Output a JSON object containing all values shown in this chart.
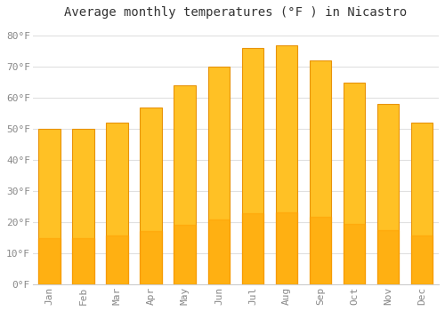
{
  "title": "Average monthly temperatures (°F ) in Nicastro",
  "months": [
    "Jan",
    "Feb",
    "Mar",
    "Apr",
    "May",
    "Jun",
    "Jul",
    "Aug",
    "Sep",
    "Oct",
    "Nov",
    "Dec"
  ],
  "values": [
    50,
    50,
    52,
    57,
    64,
    70,
    76,
    77,
    72,
    65,
    58,
    52
  ],
  "bar_color_top": "#FFC125",
  "bar_color_bottom": "#FFA000",
  "bar_edge_color": "#E8930A",
  "ylim": [
    0,
    84
  ],
  "yticks": [
    0,
    10,
    20,
    30,
    40,
    50,
    60,
    70,
    80
  ],
  "ytick_labels": [
    "0°F",
    "10°F",
    "20°F",
    "30°F",
    "40°F",
    "50°F",
    "60°F",
    "70°F",
    "80°F"
  ],
  "background_color": "#ffffff",
  "grid_color": "#e0e0e0",
  "title_fontsize": 10,
  "tick_fontsize": 8,
  "font_family": "monospace",
  "tick_color": "#888888",
  "bar_width": 0.65
}
